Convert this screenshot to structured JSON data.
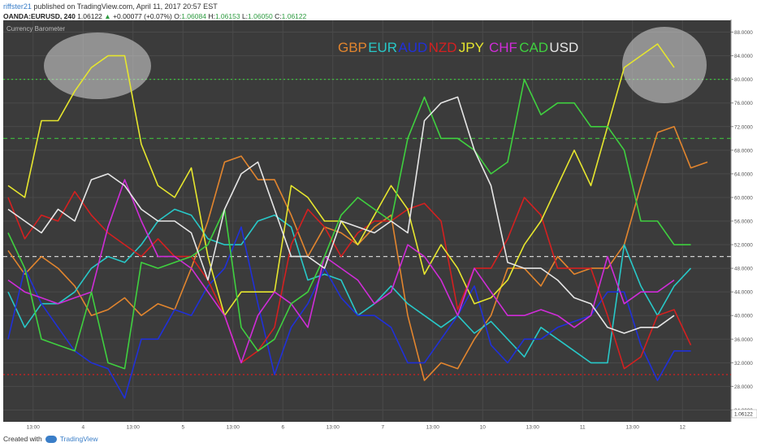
{
  "header": {
    "user": "riffster21",
    "published": "published on TradingView.com, April 11, 2017 20:57 EST",
    "symbol": "OANDA:EURUSD, 240",
    "price": "1.06122",
    "change": "+0.00077 (+0.07%)",
    "o_label": "O:",
    "o": "1.06084",
    "h_label": "H:",
    "h": "1.06153",
    "l_label": "L:",
    "l": "1.06050",
    "c_label": "C:",
    "c": "1.06122"
  },
  "footer": {
    "created": "Created with",
    "brand": "TradingView"
  },
  "colors": {
    "background": "#3b3b3b",
    "axis_bg": "#ffffff",
    "green_level": "#3fbf3f",
    "red_level": "#d42020",
    "mid_level": "#cfcfcf"
  },
  "chart_data": {
    "type": "line",
    "indicator_title": "Currency Barometer",
    "ylim": [
      22,
      90
    ],
    "yticks": [
      "20.0000",
      "24.0000",
      "28.0000",
      "32.0000",
      "36.0000",
      "40.0000",
      "44.0000",
      "48.0000",
      "52.0000",
      "56.0000",
      "60.0000",
      "64.0000",
      "68.0000",
      "72.0000",
      "76.0000",
      "80.0000",
      "84.0000",
      "88.0000"
    ],
    "ytick_values": [
      20,
      24,
      28,
      32,
      36,
      40,
      44,
      48,
      52,
      56,
      60,
      64,
      68,
      72,
      76,
      80,
      84,
      88
    ],
    "last_price_label": "1.06122",
    "xticks": [
      "13:00",
      "4",
      "13:00",
      "5",
      "13:00",
      "6",
      "13:00",
      "7",
      "13:00",
      "10",
      "13:00",
      "11",
      "13:00",
      "12"
    ],
    "xtick_index": [
      1.5,
      4.5,
      7.5,
      10.5,
      13.5,
      16.5,
      19.5,
      22.5,
      25.5,
      28.5,
      31.5,
      34.5,
      37.5,
      40.5
    ],
    "levels": [
      {
        "value": 80,
        "color": "#3fbf3f",
        "style": "dotted"
      },
      {
        "value": 70,
        "color": "#3fbf3f",
        "style": "dashed"
      },
      {
        "value": 50,
        "color": "#cfcfcf",
        "style": "dashed"
      },
      {
        "value": 30,
        "color": "#d42020",
        "style": "dotted"
      },
      {
        "value": 20,
        "color": "#d42020",
        "style": "solid"
      }
    ],
    "series": [
      {
        "name": "GBP",
        "color": "#e2852e",
        "values": [
          51,
          47,
          50,
          48,
          45,
          40,
          41,
          43,
          40,
          42,
          41,
          48,
          56,
          66,
          67,
          63,
          63,
          57,
          50,
          55,
          54,
          52,
          55,
          57,
          40,
          29,
          32,
          31,
          36,
          40,
          48,
          48,
          45,
          50,
          47,
          48,
          48,
          52,
          62,
          71,
          72,
          65,
          66
        ]
      },
      {
        "name": "EUR",
        "color": "#28c8c8",
        "values": [
          44,
          38,
          42,
          42,
          44,
          48,
          50,
          49,
          52,
          56,
          58,
          57,
          53,
          52,
          52,
          56,
          57,
          55,
          46,
          47,
          46,
          40,
          42,
          45,
          42,
          40,
          38,
          40,
          37,
          39,
          36,
          33,
          38,
          36,
          34,
          32,
          32,
          52,
          45,
          40,
          45,
          48
        ]
      },
      {
        "name": "AUD",
        "color": "#2030d8",
        "values": [
          36,
          48,
          42,
          38,
          34,
          32,
          31,
          26,
          36,
          36,
          41,
          40,
          45,
          48,
          55,
          42,
          30,
          38,
          42,
          48,
          43,
          40,
          40,
          38,
          32,
          32,
          36,
          40,
          45,
          35,
          32,
          36,
          36,
          38,
          39,
          40,
          44,
          44,
          35,
          29,
          34,
          34
        ]
      },
      {
        "name": "NZD",
        "color": "#d42020",
        "values": [
          60,
          53,
          57,
          56,
          61,
          57,
          54,
          52,
          50,
          53,
          50,
          50,
          46,
          40,
          32,
          34,
          38,
          52,
          58,
          55,
          50,
          54,
          56,
          56,
          58,
          59,
          56,
          41,
          48,
          48,
          53,
          60,
          57,
          48,
          48,
          48,
          40,
          31,
          33,
          40,
          41,
          35
        ]
      },
      {
        "name": "JPY",
        "color": "#e6e62e",
        "values": [
          62,
          60,
          73,
          73,
          78,
          82,
          84,
          84,
          69,
          62,
          60,
          65,
          50,
          40,
          44,
          44,
          44,
          62,
          60,
          56,
          56,
          52,
          57,
          62,
          58,
          47,
          52,
          48,
          42,
          43,
          46,
          52,
          56,
          62,
          68,
          62,
          72,
          82,
          84,
          86,
          82
        ]
      },
      {
        "name": "CHF",
        "color": "#d02cd8",
        "values": [
          46,
          44,
          43,
          42,
          43,
          44,
          55,
          63,
          56,
          50,
          50,
          48,
          44,
          40,
          32,
          40,
          44,
          42,
          38,
          50,
          48,
          46,
          42,
          44,
          52,
          50,
          46,
          40,
          48,
          44,
          40,
          40,
          41,
          40,
          38,
          40,
          50,
          42,
          44,
          44,
          46
        ]
      },
      {
        "name": "CAD",
        "color": "#3fd03f",
        "values": [
          54,
          48,
          36,
          35,
          34,
          44,
          32,
          31,
          49,
          48,
          49,
          50,
          52,
          58,
          38,
          34,
          36,
          42,
          44,
          50,
          57,
          60,
          58,
          56,
          70,
          77,
          70,
          70,
          68,
          64,
          66,
          80,
          74,
          76,
          76,
          72,
          72,
          68,
          56,
          56,
          52,
          52
        ]
      },
      {
        "name": "USD",
        "color": "#e6e6e6",
        "values": [
          58,
          56,
          54,
          58,
          56,
          63,
          64,
          62,
          58,
          56,
          56,
          54,
          46,
          58,
          64,
          66,
          58,
          50,
          50,
          48,
          56,
          55,
          54,
          56,
          54,
          73,
          76,
          77,
          68,
          62,
          49,
          48,
          48,
          46,
          43,
          42,
          38,
          37,
          38,
          38,
          40
        ]
      }
    ]
  }
}
